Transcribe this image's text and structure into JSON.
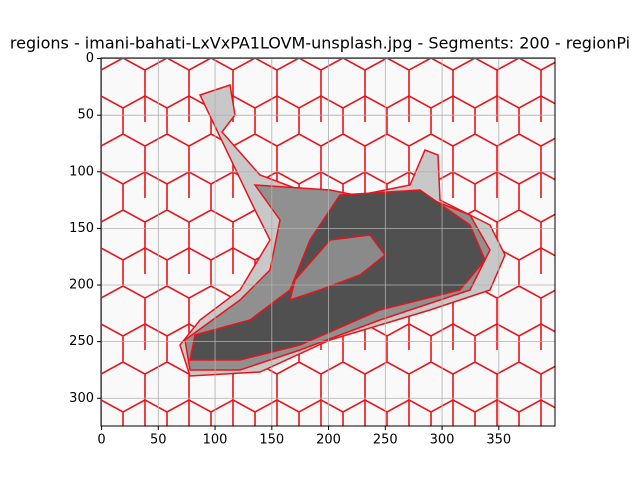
{
  "chart_data": {
    "type": "image",
    "title": "regions - imani-bahati-LxVxPA1LOVM-unsplash.jpg - Segments: 200 - regionPi",
    "xlim": [
      -0.5,
      399.5
    ],
    "ylim": [
      324.5,
      -0.5
    ],
    "xticks": [
      0,
      50,
      100,
      150,
      200,
      250,
      300,
      350
    ],
    "yticks": [
      0,
      50,
      100,
      150,
      200,
      250,
      300
    ],
    "grid": true
  }
}
